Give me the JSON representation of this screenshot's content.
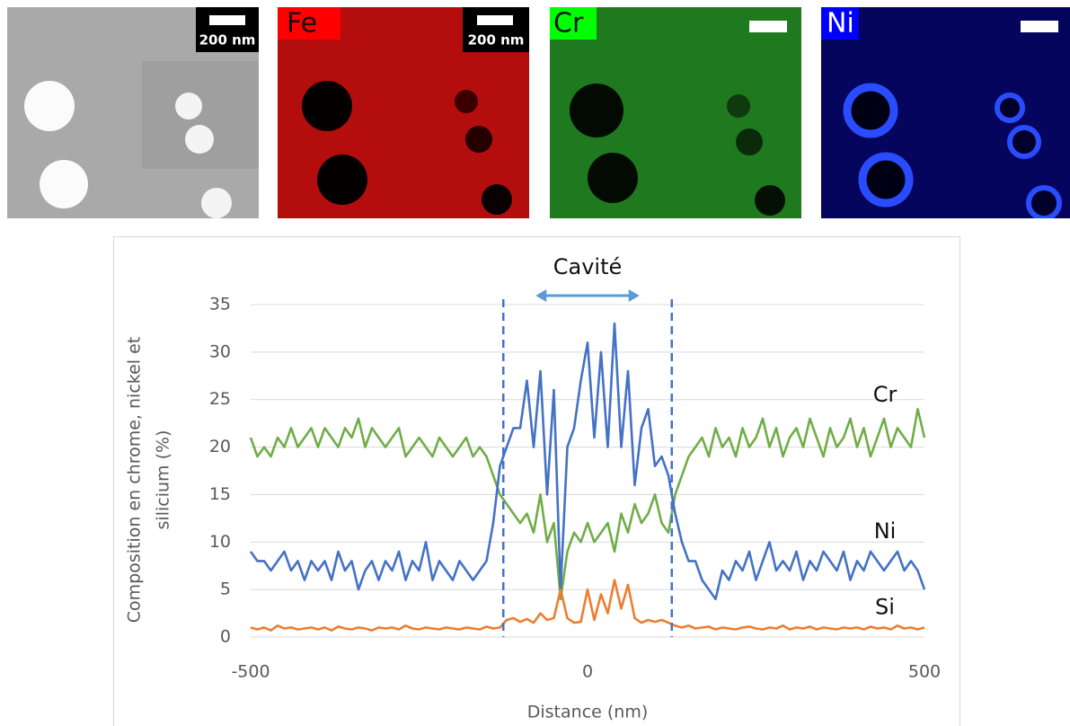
{
  "panels": [
    {
      "scale_bar": "200 nm"
    },
    {
      "label": "Fe",
      "scale_bar": "200 nm"
    },
    {
      "label": "Cr"
    },
    {
      "label": "Ni"
    }
  ],
  "chart_data": {
    "type": "line",
    "annotation": "Cavité",
    "vlines": [
      -125,
      125
    ],
    "x_label": "Distance (nm)",
    "y_label": [
      "Composition en chrome, nickel et",
      "silicium (%)"
    ],
    "xlim": [
      -500,
      500
    ],
    "ylim": [
      0,
      35
    ],
    "xticks": [
      -500,
      0,
      500
    ],
    "yticks": [
      0,
      5,
      10,
      15,
      20,
      25,
      30,
      35
    ],
    "grid": true,
    "x": [
      -500,
      -490,
      -480,
      -470,
      -460,
      -450,
      -440,
      -430,
      -420,
      -410,
      -400,
      -390,
      -380,
      -370,
      -360,
      -350,
      -340,
      -330,
      -320,
      -310,
      -300,
      -290,
      -280,
      -270,
      -260,
      -250,
      -240,
      -230,
      -220,
      -210,
      -200,
      -190,
      -180,
      -170,
      -160,
      -150,
      -140,
      -130,
      -120,
      -110,
      -100,
      -90,
      -80,
      -70,
      -60,
      -50,
      -40,
      -30,
      -20,
      -10,
      0,
      10,
      20,
      30,
      40,
      50,
      60,
      70,
      80,
      90,
      100,
      110,
      120,
      130,
      140,
      150,
      160,
      170,
      180,
      190,
      200,
      210,
      220,
      230,
      240,
      250,
      260,
      270,
      280,
      290,
      300,
      310,
      320,
      330,
      340,
      350,
      360,
      370,
      380,
      390,
      400,
      410,
      420,
      430,
      440,
      450,
      460,
      470,
      480,
      490,
      500
    ],
    "series": [
      {
        "name": "Cr",
        "color": "#70ad47",
        "values": [
          21,
          19,
          20,
          19,
          21,
          20,
          22,
          20,
          21,
          22,
          20,
          22,
          21,
          20,
          22,
          21,
          23,
          20,
          22,
          21,
          20,
          21,
          22,
          19,
          20,
          21,
          20,
          19,
          21,
          20,
          19,
          20,
          21,
          19,
          20,
          19,
          17,
          15,
          14,
          13,
          12,
          13,
          11,
          15,
          10,
          12,
          4,
          9,
          11,
          10,
          12,
          10,
          11,
          12,
          9,
          13,
          11,
          14,
          12,
          13,
          15,
          12,
          11,
          15,
          17,
          19,
          20,
          21,
          19,
          22,
          20,
          21,
          19,
          22,
          20,
          21,
          23,
          20,
          22,
          19,
          21,
          22,
          20,
          23,
          21,
          19,
          22,
          20,
          21,
          23,
          20,
          22,
          19,
          21,
          23,
          20,
          22,
          21,
          20,
          24,
          21
        ]
      },
      {
        "name": "Ni",
        "color": "#4472c4",
        "values": [
          9,
          8,
          8,
          7,
          8,
          9,
          7,
          8,
          6,
          8,
          7,
          8,
          6,
          9,
          7,
          8,
          5,
          7,
          8,
          6,
          8,
          7,
          9,
          6,
          8,
          7,
          10,
          6,
          8,
          7,
          6,
          8,
          7,
          6,
          7,
          8,
          12,
          18,
          20,
          22,
          22,
          27,
          20,
          28,
          15,
          26,
          5,
          20,
          22,
          27,
          31,
          21,
          30,
          20,
          33,
          20,
          28,
          16,
          22,
          24,
          18,
          19,
          17,
          13,
          10,
          8,
          8,
          6,
          5,
          4,
          7,
          6,
          8,
          7,
          9,
          6,
          8,
          10,
          7,
          8,
          7,
          9,
          6,
          8,
          7,
          9,
          8,
          7,
          9,
          6,
          8,
          7,
          9,
          8,
          7,
          8,
          9,
          7,
          8,
          7,
          5
        ]
      },
      {
        "name": "Si",
        "color": "#ed7d31",
        "values": [
          1,
          0.8,
          1,
          0.7,
          1.2,
          0.9,
          1,
          0.8,
          0.9,
          1,
          0.8,
          1,
          0.7,
          1.1,
          0.9,
          0.8,
          1,
          0.9,
          0.7,
          1,
          0.9,
          1,
          0.8,
          1.2,
          0.9,
          0.8,
          1,
          0.9,
          0.8,
          1,
          0.9,
          0.8,
          1,
          0.9,
          0.8,
          1.1,
          0.9,
          1,
          1.8,
          2,
          1.6,
          1.9,
          1.5,
          2.5,
          1.8,
          2,
          5,
          2,
          1.5,
          1.6,
          5,
          1.8,
          4.5,
          2.5,
          6,
          3,
          5.5,
          2,
          1.5,
          1.8,
          1.6,
          1.8,
          1.5,
          1.2,
          1,
          1.2,
          0.9,
          1,
          1.1,
          0.8,
          1,
          0.9,
          0.8,
          1,
          1.1,
          0.9,
          0.8,
          1,
          0.9,
          1.2,
          0.8,
          1,
          0.9,
          1.1,
          0.8,
          1,
          0.9,
          0.8,
          1,
          0.9,
          1,
          0.8,
          1.1,
          0.9,
          1,
          0.8,
          1.2,
          0.9,
          1,
          0.8,
          1
        ]
      }
    ]
  }
}
